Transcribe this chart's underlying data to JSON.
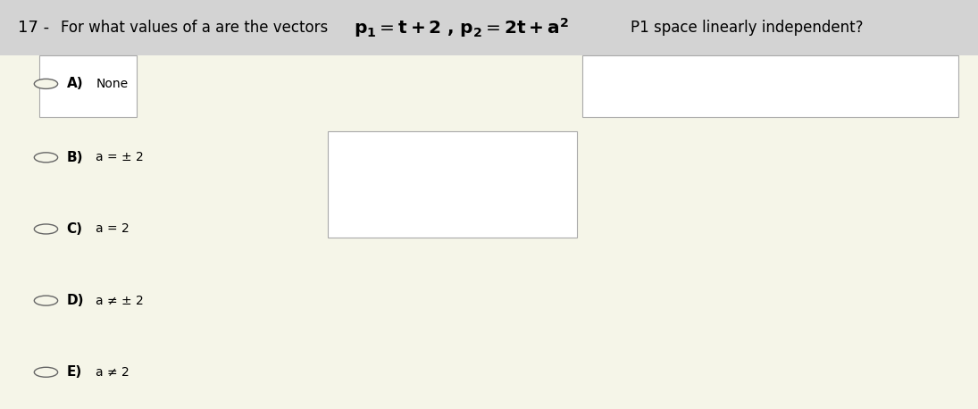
{
  "bg_color": "#f5f5e8",
  "header_bg": "#d0d0d0",
  "header_text_color": "#000000",
  "question_number": "17 -",
  "question_prefix": "For what values of a are the vectors ",
  "question_suffix": "P1 space linearly independent?",
  "options": [
    {
      "label": "A)",
      "text": "None"
    },
    {
      "label": "B)",
      "text": "a = ± 2"
    },
    {
      "label": "C)",
      "text": "a = 2"
    },
    {
      "label": "D)",
      "text": "a ≠ ± 2"
    },
    {
      "label": "E)",
      "text": "a ≠ 2"
    }
  ],
  "figsize": [
    10.95,
    4.58
  ],
  "dpi": 100
}
